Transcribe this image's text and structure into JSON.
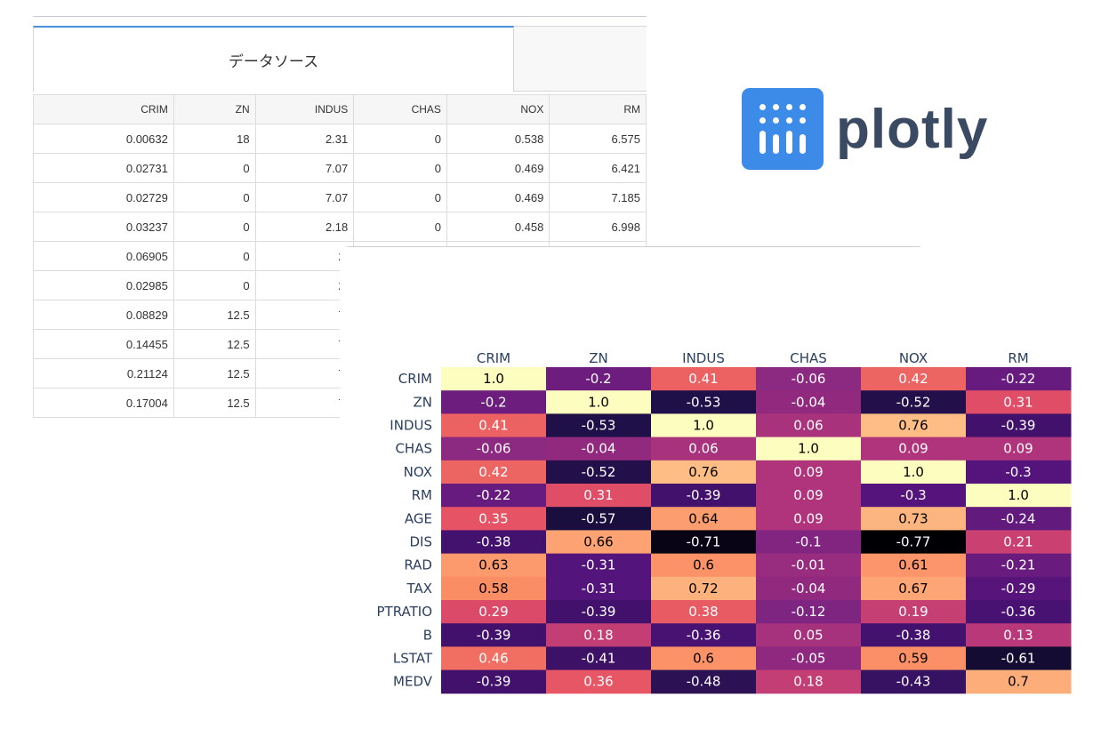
{
  "datasource": {
    "tab_active_label": "データソース",
    "columns": [
      "CRIM",
      "ZN",
      "INDUS",
      "CHAS",
      "NOX",
      "RM"
    ],
    "rows": [
      [
        "0.00632",
        "18",
        "2.31",
        "0",
        "0.538",
        "6.575"
      ],
      [
        "0.02731",
        "0",
        "7.07",
        "0",
        "0.469",
        "6.421"
      ],
      [
        "0.02729",
        "0",
        "7.07",
        "0",
        "0.469",
        "7.185"
      ],
      [
        "0.03237",
        "0",
        "2.18",
        "0",
        "0.458",
        "6.998"
      ],
      [
        "0.06905",
        "0",
        "2.",
        "",
        "",
        ""
      ],
      [
        "0.02985",
        "0",
        "2.",
        "",
        "",
        ""
      ],
      [
        "0.08829",
        "12.5",
        "7.",
        "",
        "",
        ""
      ],
      [
        "0.14455",
        "12.5",
        "7.",
        "",
        "",
        ""
      ],
      [
        "0.21124",
        "12.5",
        "7.",
        "",
        "",
        ""
      ],
      [
        "0.17004",
        "12.5",
        "7.",
        "",
        "",
        ""
      ]
    ]
  },
  "logo": {
    "text": "plotly",
    "brand_color": "#3d8be8",
    "text_color": "#3a4a63"
  },
  "chart_data": {
    "type": "heatmap",
    "x": [
      "CRIM",
      "ZN",
      "INDUS",
      "CHAS",
      "NOX",
      "RM"
    ],
    "y": [
      "CRIM",
      "ZN",
      "INDUS",
      "CHAS",
      "NOX",
      "RM",
      "AGE",
      "DIS",
      "RAD",
      "TAX",
      "PTRATIO",
      "B",
      "LSTAT",
      "MEDV"
    ],
    "z": [
      [
        1.0,
        -0.2,
        0.41,
        -0.06,
        0.42,
        -0.22
      ],
      [
        -0.2,
        1.0,
        -0.53,
        -0.04,
        -0.52,
        0.31
      ],
      [
        0.41,
        -0.53,
        1.0,
        0.06,
        0.76,
        -0.39
      ],
      [
        -0.06,
        -0.04,
        0.06,
        1.0,
        0.09,
        0.09
      ],
      [
        0.42,
        -0.52,
        0.76,
        0.09,
        1.0,
        -0.3
      ],
      [
        -0.22,
        0.31,
        -0.39,
        0.09,
        -0.3,
        1.0
      ],
      [
        0.35,
        -0.57,
        0.64,
        0.09,
        0.73,
        -0.24
      ],
      [
        -0.38,
        0.66,
        -0.71,
        -0.1,
        -0.77,
        0.21
      ],
      [
        0.63,
        -0.31,
        0.6,
        -0.01,
        0.61,
        -0.21
      ],
      [
        0.58,
        -0.31,
        0.72,
        -0.04,
        0.67,
        -0.29
      ],
      [
        0.29,
        -0.39,
        0.38,
        -0.12,
        0.19,
        -0.36
      ],
      [
        -0.39,
        0.18,
        -0.36,
        0.05,
        -0.38,
        0.13
      ],
      [
        0.46,
        -0.41,
        0.6,
        -0.05,
        0.59,
        -0.61
      ],
      [
        -0.39,
        0.36,
        -0.48,
        0.18,
        -0.43,
        0.7
      ]
    ],
    "zmin": -0.77,
    "zmax": 1.0,
    "colorscale": [
      "#000004",
      "#1c1044",
      "#4f127b",
      "#812581",
      "#b5367a",
      "#e55064",
      "#fb8761",
      "#fec287",
      "#fcfdbf"
    ],
    "show_cell_values": true
  }
}
